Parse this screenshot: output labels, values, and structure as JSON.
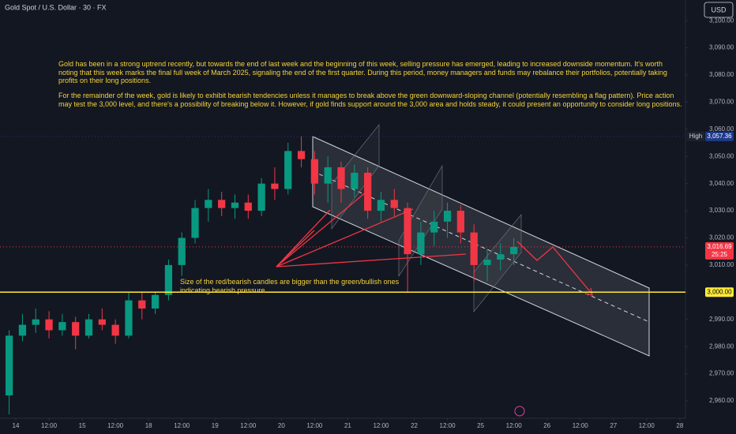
{
  "header": {
    "title": "Gold Spot / U.S. Dollar · 30 · FX",
    "currency": "USD"
  },
  "chart_data": {
    "type": "candlestick",
    "up_color": "#089981",
    "down_color": "#f23645",
    "x": [
      -0.2,
      0.2,
      0.6,
      1.0,
      1.4,
      1.8,
      2.2,
      2.6,
      3.0,
      3.4,
      3.8,
      4.2,
      4.6,
      5.0,
      5.4,
      5.8,
      6.2,
      6.6,
      7.0,
      7.4,
      7.8,
      8.2,
      8.6,
      9.0,
      9.4,
      9.8,
      10.2,
      10.6,
      11.0,
      11.4,
      11.8,
      12.2,
      12.6,
      13.0,
      13.4,
      13.8,
      14.2,
      14.6,
      15.0
    ],
    "open": [
      2962,
      2984,
      2988,
      2990,
      2986,
      2989,
      2984,
      2990,
      2988,
      2984,
      2997,
      2994,
      2999,
      3010,
      3020,
      3031,
      3034,
      3031,
      3033,
      3030,
      3040,
      3038,
      3052,
      3049,
      3040,
      3046,
      3038,
      3044,
      3030,
      3034,
      3031,
      3014,
      3022,
      3026,
      3030,
      3022,
      3010,
      3012,
      3014
    ],
    "high": [
      2986,
      2992,
      2994,
      2993,
      2992,
      2991,
      2992,
      2994,
      2990,
      3000,
      3000,
      3000,
      3012,
      3022,
      3034,
      3038,
      3037,
      3036,
      3036,
      3042,
      3046,
      3055,
      3057.36,
      3052,
      3050,
      3048,
      3047,
      3046,
      3037,
      3038,
      3033,
      3026,
      3030,
      3033,
      3032,
      3025,
      3016,
      3018,
      3020
    ],
    "low": [
      2955,
      2982,
      2985,
      2983,
      2984,
      2979,
      2983,
      2986,
      2981,
      2983,
      2990,
      2992,
      2997,
      3006,
      3018,
      3026,
      3028,
      3027,
      3027,
      3028,
      3034,
      3036,
      3046,
      3036,
      3033,
      3033,
      3035,
      3027,
      3026,
      3028,
      3000,
      3010,
      3017,
      3020,
      3018,
      3004,
      3004,
      3008,
      3010
    ],
    "close": [
      2984,
      2988,
      2990,
      2986,
      2989,
      2984,
      2990,
      2988,
      2984,
      2997,
      2994,
      2999,
      3010,
      3020,
      3031,
      3034,
      3031,
      3033,
      3030,
      3040,
      3038,
      3052,
      3049,
      3040,
      3046,
      3038,
      3044,
      3030,
      3034,
      3031,
      3014,
      3022,
      3026,
      3030,
      3022,
      3010,
      3012,
      3014,
      3016.69
    ],
    "xlim": [
      -0.476,
      20.17
    ],
    "xticks": [
      {
        "value": 0,
        "label": "14"
      },
      {
        "value": 1,
        "label": "12:00"
      },
      {
        "value": 2,
        "label": "15"
      },
      {
        "value": 3,
        "label": "12:00"
      },
      {
        "value": 4,
        "label": "18"
      },
      {
        "value": 5,
        "label": "12:00"
      },
      {
        "value": 6,
        "label": "19"
      },
      {
        "value": 7,
        "label": "12:00"
      },
      {
        "value": 8,
        "label": "20"
      },
      {
        "value": 9,
        "label": "12:00"
      },
      {
        "value": 10,
        "label": "21"
      },
      {
        "value": 11,
        "label": "12:00"
      },
      {
        "value": 12,
        "label": "22"
      },
      {
        "value": 13,
        "label": "12:00"
      },
      {
        "value": 14,
        "label": "25"
      },
      {
        "value": 15,
        "label": "12:00"
      },
      {
        "value": 16,
        "label": "26"
      },
      {
        "value": 17,
        "label": "12:00"
      },
      {
        "value": 18,
        "label": "27"
      },
      {
        "value": 19,
        "label": "12:00"
      },
      {
        "value": 20,
        "label": "28"
      }
    ],
    "ylim": [
      2953.6,
      3107.6
    ],
    "yticks": [
      {
        "value": 2960,
        "label": "2,960.00"
      },
      {
        "value": 2970,
        "label": "2,970.00"
      },
      {
        "value": 2980,
        "label": "2,980.00"
      },
      {
        "value": 2990,
        "label": "2,990.00"
      },
      {
        "value": 3000,
        "label": "3,000.00"
      },
      {
        "value": 3010,
        "label": "3,010.00"
      },
      {
        "value": 3020,
        "label": "3,020.00"
      },
      {
        "value": 3030,
        "label": "3,030.00"
      },
      {
        "value": 3040,
        "label": "3,040.00"
      },
      {
        "value": 3050,
        "label": "3,050.00"
      },
      {
        "value": 3060,
        "label": "3,060.00"
      },
      {
        "value": 3070,
        "label": "3,070.00"
      },
      {
        "value": 3080,
        "label": "3,080.00"
      },
      {
        "value": 3090,
        "label": "3,090.00"
      },
      {
        "value": 3100,
        "label": "3,100.00"
      }
    ],
    "price_lines": [
      {
        "name": "High",
        "value": 3057.36,
        "label": "3,057.36",
        "color": "#1e3a8a",
        "style": "dotted"
      },
      {
        "value": 3016.69,
        "label": "3,016.69",
        "timer": "25:25",
        "color": "#f23645",
        "style": "dotted"
      },
      {
        "value": 3000,
        "label": "3,000.00",
        "color": "#ffeb3b",
        "style": "solid"
      }
    ],
    "annotations": [
      "Gold has been in a strong uptrend recently, but towards the end of last week and the beginning of this week, selling pressure has emerged, leading to increased downside momentum. It's worth noting that this week marks the final full week of March 2025, signaling the end of the first quarter. During this period, money managers and funds may rebalance their portfolios, potentially taking profits on their long positions.",
      "For the remainder of the week, gold is likely to exhibit bearish tendencies unless it manages to break above the green downward-sloping channel (potentially resembling a flag pattern). Price action may test the 3,000 level, and there's a possibility of breaking below it. However, if gold finds support around the 3,000 area and holds steady, it could present an opportunity to consider long positions.",
      "Size of the red/bearish candles are bigger than the green/bullish ones indicating bearish pressure."
    ]
  }
}
